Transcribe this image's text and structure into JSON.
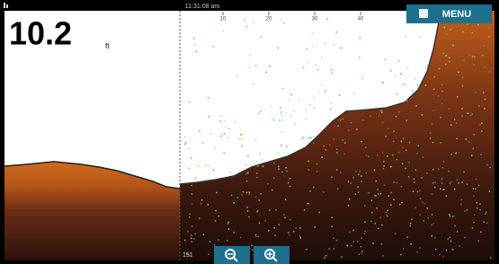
{
  "status_bar": {
    "time": "11:31:08 am"
  },
  "menu_button": {
    "label": "MENU"
  },
  "depth": {
    "value": "10.2",
    "unit": "ft"
  },
  "range_scale": {
    "labels": [
      "10",
      "20",
      "30",
      "40"
    ]
  },
  "depth_scale": {
    "labels": [
      "151"
    ]
  }
}
